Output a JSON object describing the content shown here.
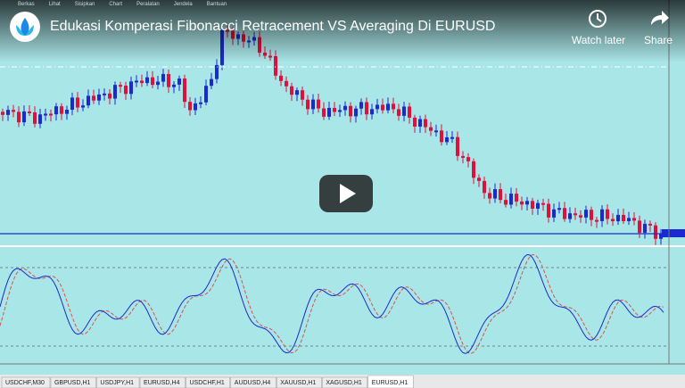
{
  "video": {
    "title": "Edukasi Komperasi Fibonacci Retracement VS Averaging Di EURUSD",
    "watch_later": "Watch later",
    "share": "Share"
  },
  "menu": [
    "Berkas",
    "Lihat",
    "Sisipkan",
    "Chart",
    "Peralatan",
    "Jendela",
    "Bantuan"
  ],
  "tabs": [
    "USDCHF,M30",
    "GBPUSD,H1",
    "USDJPY,H1",
    "EURUSD,H4",
    "USDCHF,H1",
    "AUDUSD,H4",
    "XAUUSD,H1",
    "XAGUSD,H1",
    "EURUSD,H1"
  ],
  "active_tab": 8
}
